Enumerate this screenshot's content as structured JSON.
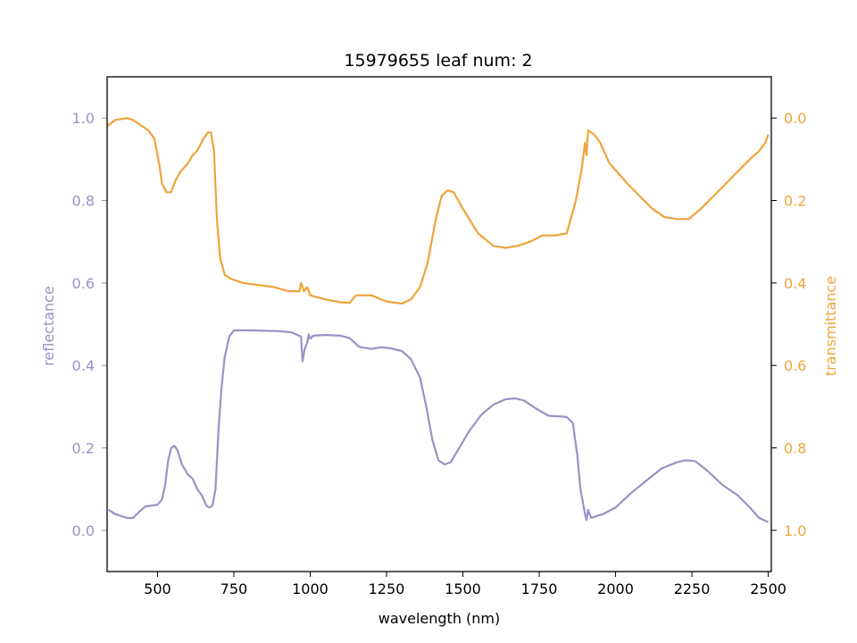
{
  "chart_data": {
    "type": "line",
    "title": "15979655 leaf num: 2",
    "xlabel": "wavelength (nm)",
    "ylabel_left": "reflectance",
    "ylabel_right": "transmittance",
    "xlim": [
      335,
      2510
    ],
    "ylim_left": [
      -0.1,
      1.1
    ],
    "ylim_right": [
      1.1,
      -0.1
    ],
    "right_axis_inverted": true,
    "grid": false,
    "x_ticks": [
      500,
      750,
      1000,
      1250,
      1500,
      1750,
      2000,
      2250,
      2500
    ],
    "y_ticks_left": [
      0.0,
      0.2,
      0.4,
      0.6,
      0.8,
      1.0
    ],
    "y_ticks_right": [
      0.0,
      0.2,
      0.4,
      0.6,
      0.8,
      1.0
    ],
    "colors": {
      "reflectance": "#9793c6",
      "transmittance": "#f0a33a"
    },
    "series": [
      {
        "key": "reflectance",
        "axis": "left",
        "points": [
          [
            340,
            0.05
          ],
          [
            360,
            0.04
          ],
          [
            380,
            0.035
          ],
          [
            400,
            0.03
          ],
          [
            420,
            0.03
          ],
          [
            440,
            0.045
          ],
          [
            460,
            0.058
          ],
          [
            480,
            0.06
          ],
          [
            500,
            0.062
          ],
          [
            515,
            0.075
          ],
          [
            525,
            0.11
          ],
          [
            535,
            0.17
          ],
          [
            545,
            0.2
          ],
          [
            555,
            0.205
          ],
          [
            565,
            0.195
          ],
          [
            580,
            0.16
          ],
          [
            600,
            0.135
          ],
          [
            615,
            0.125
          ],
          [
            630,
            0.1
          ],
          [
            645,
            0.085
          ],
          [
            660,
            0.06
          ],
          [
            670,
            0.055
          ],
          [
            680,
            0.06
          ],
          [
            690,
            0.1
          ],
          [
            700,
            0.25
          ],
          [
            710,
            0.35
          ],
          [
            720,
            0.42
          ],
          [
            735,
            0.47
          ],
          [
            750,
            0.485
          ],
          [
            800,
            0.485
          ],
          [
            850,
            0.484
          ],
          [
            900,
            0.483
          ],
          [
            940,
            0.48
          ],
          [
            970,
            0.47
          ],
          [
            975,
            0.41
          ],
          [
            982,
            0.44
          ],
          [
            990,
            0.455
          ],
          [
            995,
            0.475
          ],
          [
            1000,
            0.465
          ],
          [
            1010,
            0.472
          ],
          [
            1050,
            0.474
          ],
          [
            1100,
            0.472
          ],
          [
            1130,
            0.466
          ],
          [
            1160,
            0.445
          ],
          [
            1200,
            0.44
          ],
          [
            1230,
            0.444
          ],
          [
            1260,
            0.442
          ],
          [
            1300,
            0.435
          ],
          [
            1330,
            0.415
          ],
          [
            1360,
            0.37
          ],
          [
            1380,
            0.3
          ],
          [
            1400,
            0.22
          ],
          [
            1420,
            0.17
          ],
          [
            1440,
            0.16
          ],
          [
            1460,
            0.165
          ],
          [
            1480,
            0.19
          ],
          [
            1520,
            0.24
          ],
          [
            1560,
            0.28
          ],
          [
            1600,
            0.305
          ],
          [
            1640,
            0.318
          ],
          [
            1670,
            0.32
          ],
          [
            1700,
            0.315
          ],
          [
            1740,
            0.295
          ],
          [
            1780,
            0.278
          ],
          [
            1820,
            0.276
          ],
          [
            1840,
            0.275
          ],
          [
            1860,
            0.26
          ],
          [
            1875,
            0.18
          ],
          [
            1885,
            0.1
          ],
          [
            1895,
            0.06
          ],
          [
            1900,
            0.04
          ],
          [
            1905,
            0.025
          ],
          [
            1910,
            0.05
          ],
          [
            1920,
            0.03
          ],
          [
            1940,
            0.035
          ],
          [
            1960,
            0.04
          ],
          [
            2000,
            0.055
          ],
          [
            2050,
            0.09
          ],
          [
            2100,
            0.12
          ],
          [
            2150,
            0.15
          ],
          [
            2200,
            0.165
          ],
          [
            2230,
            0.17
          ],
          [
            2260,
            0.168
          ],
          [
            2300,
            0.145
          ],
          [
            2350,
            0.11
          ],
          [
            2400,
            0.085
          ],
          [
            2440,
            0.055
          ],
          [
            2470,
            0.03
          ],
          [
            2500,
            0.02
          ]
        ]
      },
      {
        "key": "transmittance",
        "axis": "right",
        "points": [
          [
            335,
            0.02
          ],
          [
            360,
            0.005
          ],
          [
            400,
            0.0
          ],
          [
            420,
            0.005
          ],
          [
            450,
            0.02
          ],
          [
            470,
            0.03
          ],
          [
            490,
            0.05
          ],
          [
            505,
            0.11
          ],
          [
            515,
            0.16
          ],
          [
            530,
            0.18
          ],
          [
            545,
            0.18
          ],
          [
            560,
            0.15
          ],
          [
            575,
            0.13
          ],
          [
            600,
            0.11
          ],
          [
            615,
            0.09
          ],
          [
            630,
            0.08
          ],
          [
            650,
            0.05
          ],
          [
            665,
            0.035
          ],
          [
            675,
            0.035
          ],
          [
            685,
            0.08
          ],
          [
            695,
            0.25
          ],
          [
            705,
            0.34
          ],
          [
            720,
            0.38
          ],
          [
            740,
            0.39
          ],
          [
            780,
            0.4
          ],
          [
            830,
            0.405
          ],
          [
            880,
            0.41
          ],
          [
            930,
            0.42
          ],
          [
            965,
            0.42
          ],
          [
            970,
            0.4
          ],
          [
            980,
            0.42
          ],
          [
            990,
            0.41
          ],
          [
            1000,
            0.43
          ],
          [
            1050,
            0.44
          ],
          [
            1100,
            0.447
          ],
          [
            1130,
            0.448
          ],
          [
            1150,
            0.43
          ],
          [
            1200,
            0.43
          ],
          [
            1250,
            0.445
          ],
          [
            1300,
            0.45
          ],
          [
            1330,
            0.44
          ],
          [
            1360,
            0.41
          ],
          [
            1385,
            0.35
          ],
          [
            1410,
            0.25
          ],
          [
            1430,
            0.19
          ],
          [
            1450,
            0.175
          ],
          [
            1470,
            0.18
          ],
          [
            1500,
            0.22
          ],
          [
            1550,
            0.28
          ],
          [
            1600,
            0.31
          ],
          [
            1640,
            0.315
          ],
          [
            1680,
            0.31
          ],
          [
            1720,
            0.3
          ],
          [
            1760,
            0.285
          ],
          [
            1800,
            0.285
          ],
          [
            1840,
            0.28
          ],
          [
            1870,
            0.2
          ],
          [
            1890,
            0.12
          ],
          [
            1900,
            0.06
          ],
          [
            1905,
            0.09
          ],
          [
            1910,
            0.03
          ],
          [
            1930,
            0.04
          ],
          [
            1950,
            0.06
          ],
          [
            1980,
            0.11
          ],
          [
            2040,
            0.16
          ],
          [
            2080,
            0.19
          ],
          [
            2120,
            0.22
          ],
          [
            2160,
            0.24
          ],
          [
            2200,
            0.245
          ],
          [
            2240,
            0.245
          ],
          [
            2280,
            0.22
          ],
          [
            2320,
            0.19
          ],
          [
            2360,
            0.16
          ],
          [
            2400,
            0.13
          ],
          [
            2440,
            0.1
          ],
          [
            2470,
            0.08
          ],
          [
            2490,
            0.06
          ],
          [
            2500,
            0.04
          ]
        ]
      }
    ]
  }
}
